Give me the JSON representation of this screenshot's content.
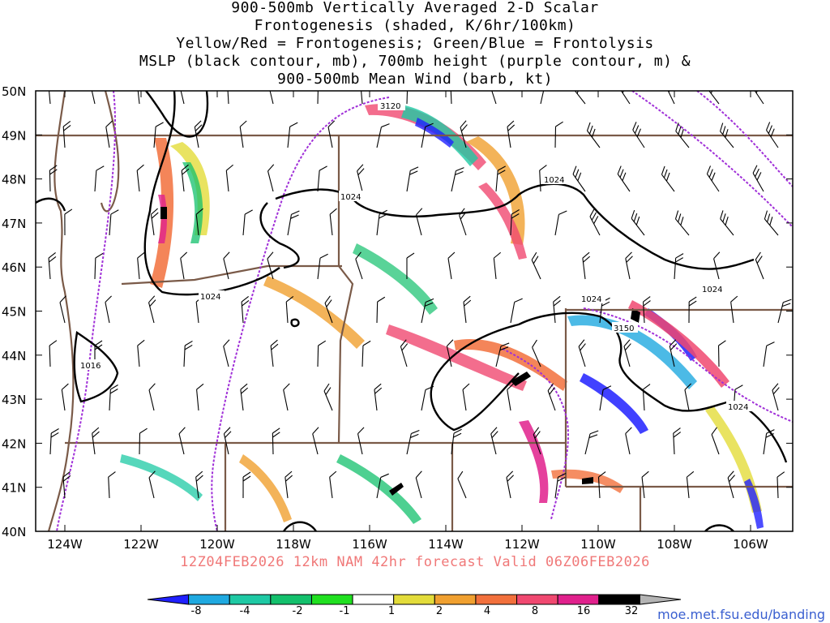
{
  "title_lines": [
    "900-500mb Vertically Averaged 2-D Scalar",
    "Frontogenesis (shaded, K/6hr/100km)",
    "Yellow/Red = Frontogenesis;  Green/Blue = Frontolysis",
    "MSLP (black contour, mb), 700mb height (purple contour, m) &",
    "900-500mb Mean Wind (barb, kt)"
  ],
  "lat_labels": [
    "50N",
    "49N",
    "48N",
    "47N",
    "46N",
    "45N",
    "44N",
    "43N",
    "42N",
    "41N",
    "40N"
  ],
  "lon_labels": [
    "124W",
    "122W",
    "120W",
    "118W",
    "116W",
    "114W",
    "112W",
    "110W",
    "108W",
    "106W"
  ],
  "contour_labels": {
    "mslp": [
      "1024",
      "1024",
      "1024",
      "1024",
      "1024",
      "1016",
      "1024"
    ],
    "height": [
      "3120",
      "3150"
    ]
  },
  "valid_line": "12Z04FEB2026 12km NAM 42hr forecast Valid 06Z06FEB2026",
  "colorbar": {
    "labels": [
      "-8",
      "-4",
      "-2",
      "-1",
      "1",
      "2",
      "4",
      "8",
      "16",
      "32"
    ],
    "colors": [
      "#2020ff",
      "#1fa9e0",
      "#1ec9a4",
      "#13c06c",
      "#20e020",
      "#ffffff",
      "#e3dc3a",
      "#f0a030",
      "#f2703c",
      "#f04870",
      "#e0208c",
      "#000000",
      "#b4b4b4"
    ]
  },
  "palette": {
    "state_border": "#7a5a48",
    "mslp": "#000000",
    "height": "#a030d8",
    "barb": "#000000"
  },
  "credit": "moe.met.fsu.edu/banding"
}
